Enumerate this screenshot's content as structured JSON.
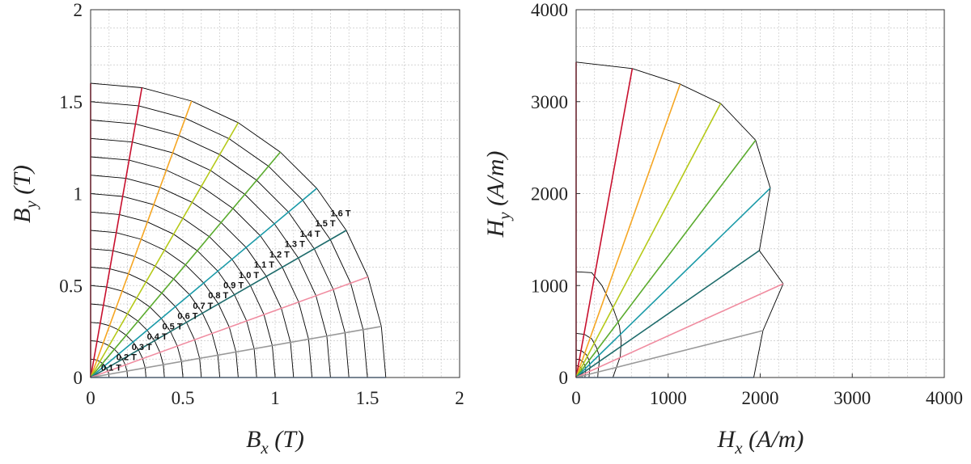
{
  "chart_data": [
    {
      "type": "line",
      "xlabel": {
        "main": "B",
        "sub": "x",
        "unit": " (T)"
      },
      "ylabel": {
        "main": "B",
        "sub": "y",
        "unit": " (T)"
      },
      "xlim": [
        0,
        2
      ],
      "ylim": [
        0,
        2
      ],
      "xticks": [
        0,
        0.5,
        1,
        1.5,
        2
      ],
      "yticks": [
        0,
        0.5,
        1,
        1.5,
        2
      ],
      "grid": true,
      "grid_minor_step": 0.1,
      "levels": [
        "0.1 T",
        "0.2 T",
        "0.3 T",
        "0.4 T",
        "0.5 T",
        "0.6 T",
        "0.7 T",
        "0.8 T",
        "0.9 T",
        "1.0 T",
        "1.1 T",
        "1.2 T",
        "1.3 T",
        "1.4 T",
        "1.5 T",
        "1.6 T"
      ],
      "level_values": [
        0.1,
        0.2,
        0.3,
        0.4,
        0.5,
        0.6,
        0.7,
        0.8,
        0.9,
        1.0,
        1.1,
        1.2,
        1.3,
        1.4,
        1.5,
        1.6
      ],
      "angles_deg": [
        90,
        80,
        70,
        60,
        50,
        40,
        30,
        20,
        10,
        0
      ],
      "ray_colors": [
        "#c8102e",
        "#c8102e",
        "#f5a623",
        "#b5c918",
        "#5aab2e",
        "#1a9aa8",
        "#1d6b6b",
        "#f08ca0",
        "#999999",
        "#7fb0e6"
      ],
      "contour_color": "#000000"
    },
    {
      "type": "line",
      "xlabel": {
        "main": "H",
        "sub": "x",
        "unit": " (A/m)"
      },
      "ylabel": {
        "main": "H",
        "sub": "y",
        "unit": " (A/m)"
      },
      "xlim": [
        0,
        4000
      ],
      "ylim": [
        0,
        4000
      ],
      "xticks": [
        0,
        1000,
        2000,
        3000,
        4000
      ],
      "yticks": [
        0,
        1000,
        2000,
        3000,
        4000
      ],
      "grid": true,
      "grid_minor_step": 200,
      "ray_colors": [
        "#c8102e",
        "#c8102e",
        "#f5a623",
        "#b5c918",
        "#5aab2e",
        "#1a9aa8",
        "#1d6b6b",
        "#f08ca0",
        "#999999",
        "#7fb0e6"
      ],
      "ray_end_points": [
        [
          0,
          3430
        ],
        [
          610,
          3360
        ],
        [
          1130,
          3190
        ],
        [
          1570,
          2980
        ],
        [
          1950,
          2580
        ],
        [
          2110,
          2060
        ],
        [
          1990,
          1380
        ],
        [
          2250,
          1020
        ],
        [
          2030,
          510
        ],
        [
          1930,
          0
        ]
      ],
      "contours": [
        [
          [
            0,
            3430
          ],
          [
            610,
            3360
          ],
          [
            1130,
            3190
          ],
          [
            1570,
            2980
          ],
          [
            1950,
            2580
          ],
          [
            2110,
            2060
          ],
          [
            1990,
            1380
          ],
          [
            2250,
            1020
          ],
          [
            2030,
            510
          ],
          [
            1930,
            0
          ]
        ],
        [
          [
            0,
            1150
          ],
          [
            170,
            1140
          ],
          [
            280,
            1000
          ],
          [
            400,
            760
          ],
          [
            470,
            560
          ],
          [
            490,
            400
          ],
          [
            480,
            230
          ],
          [
            420,
            60
          ],
          [
            400,
            0
          ]
        ],
        [
          [
            0,
            480
          ],
          [
            90,
            470
          ],
          [
            170,
            420
          ],
          [
            220,
            330
          ],
          [
            250,
            240
          ],
          [
            250,
            150
          ],
          [
            240,
            80
          ],
          [
            235,
            0
          ]
        ],
        [
          [
            0,
            300
          ],
          [
            60,
            290
          ],
          [
            110,
            250
          ],
          [
            140,
            190
          ],
          [
            150,
            120
          ],
          [
            145,
            60
          ],
          [
            140,
            0
          ]
        ],
        [
          [
            0,
            200
          ],
          [
            40,
            195
          ],
          [
            75,
            170
          ],
          [
            95,
            130
          ],
          [
            105,
            80
          ],
          [
            100,
            40
          ],
          [
            95,
            0
          ]
        ],
        [
          [
            0,
            130
          ],
          [
            25,
            125
          ],
          [
            50,
            110
          ],
          [
            63,
            85
          ],
          [
            68,
            50
          ],
          [
            66,
            25
          ],
          [
            64,
            0
          ]
        ],
        [
          [
            0,
            75
          ],
          [
            15,
            72
          ],
          [
            28,
            62
          ],
          [
            36,
            48
          ],
          [
            40,
            28
          ],
          [
            38,
            14
          ],
          [
            37,
            0
          ]
        ],
        [
          [
            0,
            35
          ],
          [
            7,
            34
          ],
          [
            13,
            29
          ],
          [
            17,
            22
          ],
          [
            18,
            13
          ],
          [
            18,
            6
          ],
          [
            17,
            0
          ]
        ]
      ]
    }
  ]
}
